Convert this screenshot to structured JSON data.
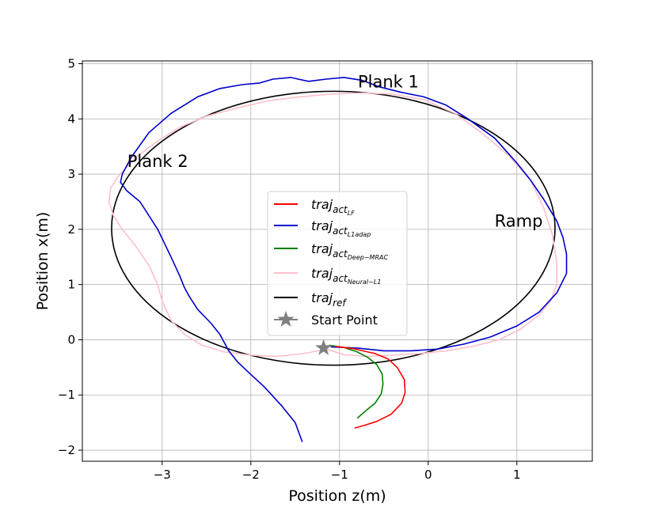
{
  "chart_data": {
    "type": "line",
    "title": "",
    "xlabel": "Position z(m)",
    "ylabel": "Position  x(m)",
    "xlim": [
      -3.9,
      1.85
    ],
    "ylim": [
      -2.2,
      5.05
    ],
    "xticks": [
      -3,
      -2,
      -1,
      0,
      1
    ],
    "yticks": [
      -2,
      -1,
      0,
      1,
      2,
      3,
      4,
      5
    ],
    "xtick_labels": [
      "−3",
      "−2",
      "−1",
      "0",
      "1"
    ],
    "ytick_labels": [
      "−2",
      "−1",
      "0",
      "1",
      "2",
      "3",
      "4",
      "5"
    ],
    "grid": true,
    "legend_position": "center",
    "annotations": [
      {
        "text": "Plank 1",
        "x": -0.45,
        "y": 4.57
      },
      {
        "text": "Plank 2",
        "x": -3.05,
        "y": 3.13
      },
      {
        "text": "Ramp",
        "x": 1.02,
        "y": 2.05
      }
    ],
    "series": [
      {
        "name": "traj_act_LF",
        "legend_main": "traj",
        "legend_sub1": "act",
        "legend_sub2": "LF",
        "color": "#ff0000",
        "x": [
          -1.05,
          -0.85,
          -0.6,
          -0.45,
          -0.35,
          -0.27,
          -0.26,
          -0.3,
          -0.42,
          -0.58,
          -0.72,
          -0.83
        ],
        "y": [
          -0.12,
          -0.16,
          -0.25,
          -0.35,
          -0.5,
          -0.72,
          -0.95,
          -1.15,
          -1.35,
          -1.48,
          -1.55,
          -1.6
        ]
      },
      {
        "name": "traj_act_L1adap",
        "legend_main": "traj",
        "legend_sub1": "act",
        "legend_sub2": "L1adap",
        "color": "#0000cc",
        "x": [
          -1.1,
          -0.8,
          -0.5,
          -0.2,
          0.1,
          0.4,
          0.7,
          1.0,
          1.25,
          1.45,
          1.56,
          1.56,
          1.52,
          1.45,
          1.3,
          1.15,
          1.0,
          0.75,
          0.45,
          0.2,
          -0.05,
          -0.3,
          -0.55,
          -0.75,
          -0.95,
          -1.15,
          -1.35,
          -1.55,
          -1.75,
          -1.9,
          -2.1,
          -2.35,
          -2.6,
          -2.9,
          -3.15,
          -3.35,
          -3.45,
          -3.47,
          -3.4,
          -3.25,
          -3.05,
          -2.9,
          -2.8,
          -2.75,
          -2.7,
          -2.6,
          -2.45,
          -2.35,
          -2.3,
          -2.25,
          -2.15,
          -2.02,
          -1.85,
          -1.65,
          -1.5,
          -1.42
        ],
        "y": [
          -0.13,
          -0.15,
          -0.2,
          -0.2,
          -0.17,
          -0.08,
          0.05,
          0.25,
          0.5,
          0.85,
          1.2,
          1.55,
          1.85,
          2.15,
          2.55,
          2.9,
          3.2,
          3.65,
          4.0,
          4.25,
          4.4,
          4.48,
          4.58,
          4.7,
          4.75,
          4.72,
          4.68,
          4.75,
          4.72,
          4.65,
          4.62,
          4.55,
          4.4,
          4.1,
          3.75,
          3.3,
          3.0,
          2.85,
          2.7,
          2.5,
          2.0,
          1.5,
          1.15,
          0.95,
          0.8,
          0.55,
          0.3,
          0.1,
          -0.05,
          -0.2,
          -0.4,
          -0.6,
          -0.85,
          -1.2,
          -1.5,
          -1.85
        ]
      },
      {
        "name": "traj_act_Deep-MRAC",
        "legend_main": "traj",
        "legend_sub1": "act",
        "legend_sub2": "Deep−MRAC",
        "color": "#008000",
        "x": [
          -1.12,
          -0.95,
          -0.8,
          -0.68,
          -0.58,
          -0.52,
          -0.51,
          -0.53,
          -0.6,
          -0.7,
          -0.8
        ],
        "y": [
          -0.1,
          -0.14,
          -0.22,
          -0.32,
          -0.45,
          -0.62,
          -0.8,
          -0.98,
          -1.15,
          -1.28,
          -1.42
        ]
      },
      {
        "name": "traj_act_Neural-L1",
        "legend_main": "traj",
        "legend_sub1": "act",
        "legend_sub2": "Neural−L1",
        "color": "#ffc0cb",
        "x": [
          -1.15,
          -1.4,
          -1.7,
          -2.0,
          -2.3,
          -2.55,
          -2.75,
          -2.9,
          -3.0,
          -3.05,
          -3.15,
          -3.3,
          -3.45,
          -3.55,
          -3.6,
          -3.58,
          -3.5,
          -3.3,
          -3.05,
          -2.8,
          -2.5,
          -2.15,
          -1.8,
          -1.45,
          -1.1,
          -0.75,
          -0.4,
          -0.05,
          0.3,
          0.6,
          0.9,
          1.15,
          1.3,
          1.4,
          1.45,
          1.45,
          1.38,
          1.25,
          1.05,
          0.8,
          0.5,
          0.2,
          -0.1,
          -0.4,
          -0.7,
          -0.95,
          -1.15
        ],
        "y": [
          -0.17,
          -0.25,
          -0.3,
          -0.28,
          -0.22,
          -0.1,
          0.1,
          0.35,
          0.7,
          1.0,
          1.35,
          1.7,
          2.0,
          2.25,
          2.5,
          2.75,
          2.95,
          3.3,
          3.6,
          3.85,
          4.05,
          4.2,
          4.33,
          4.4,
          4.45,
          4.47,
          4.45,
          4.35,
          4.1,
          3.75,
          3.35,
          2.9,
          2.4,
          1.9,
          1.4,
          1.0,
          0.7,
          0.45,
          0.2,
          0.0,
          -0.12,
          -0.2,
          -0.25,
          -0.28,
          -0.3,
          -0.27,
          -0.17
        ]
      },
      {
        "name": "traj_ref",
        "legend_main": "traj",
        "legend_sub1": "ref",
        "legend_sub2": "",
        "color": "#000000",
        "ellipse": {
          "cz": -1.07,
          "cx": 2.02,
          "rz": 2.5,
          "rx": 2.48
        }
      }
    ],
    "start_point": {
      "name": "Start Point",
      "x": -1.18,
      "y": -0.15,
      "color": "#808080"
    }
  }
}
